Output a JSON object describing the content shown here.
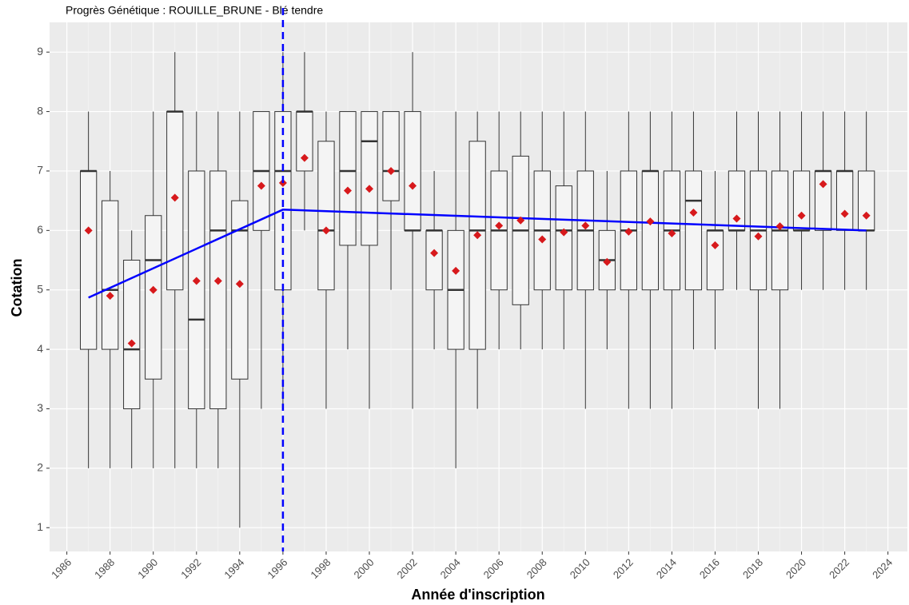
{
  "chart_data": {
    "type": "boxplot",
    "title": "Progrès Génétique : ROUILLE_BRUNE - Blé tendre",
    "x_label": "Année d'inscription",
    "y_label": "Cotation",
    "xlim": [
      1985.2,
      2024.9
    ],
    "ylim": [
      0.6,
      9.5
    ],
    "xticks": [
      1986,
      1988,
      1990,
      1992,
      1994,
      1996,
      1998,
      2000,
      2002,
      2004,
      2006,
      2008,
      2010,
      2012,
      2014,
      2016,
      2018,
      2020,
      2022,
      2024
    ],
    "yticks": [
      1,
      2,
      3,
      4,
      5,
      6,
      7,
      8,
      9
    ],
    "grid": true,
    "x": [
      1987,
      1988,
      1989,
      1990,
      1991,
      1992,
      1993,
      1994,
      1995,
      1996,
      1997,
      1998,
      1999,
      2000,
      2001,
      2002,
      2003,
      2004,
      2005,
      2006,
      2007,
      2008,
      2009,
      2010,
      2011,
      2012,
      2013,
      2014,
      2015,
      2016,
      2017,
      2018,
      2019,
      2020,
      2021,
      2022,
      2023
    ],
    "whisker_low": [
      2,
      2,
      2,
      2,
      2,
      2,
      2,
      1,
      3,
      3,
      6,
      3,
      4,
      3,
      5,
      3,
      4,
      2,
      3,
      4,
      4,
      4,
      4,
      3,
      4,
      3,
      3,
      3,
      4,
      4,
      5,
      3,
      3,
      5,
      5,
      5,
      5
    ],
    "q1": [
      4,
      4,
      3,
      3.5,
      5,
      3,
      3,
      3.5,
      6,
      5,
      7,
      5,
      5.75,
      5.75,
      6.5,
      6,
      5,
      4,
      4,
      5,
      4.75,
      5,
      5,
      5,
      5,
      5,
      5,
      5,
      5,
      5,
      6,
      5,
      5,
      6,
      6,
      6,
      6
    ],
    "median": [
      7,
      5,
      4,
      5.5,
      8,
      4.5,
      6,
      6,
      7,
      7,
      8,
      6,
      7,
      7.5,
      7,
      6,
      6,
      5,
      6,
      6,
      6,
      6,
      6,
      6,
      5.5,
      6,
      7,
      6,
      6.5,
      6,
      6,
      6,
      6,
      6,
      7,
      7,
      6
    ],
    "q3": [
      7,
      6.5,
      5.5,
      6.25,
      8,
      7,
      7,
      6.5,
      8,
      8,
      8,
      7.5,
      8,
      8,
      8,
      8,
      6,
      6,
      7.5,
      7,
      7.25,
      7,
      6.75,
      7,
      6,
      7,
      7,
      7,
      7,
      6,
      7,
      7,
      7,
      7,
      7,
      7,
      7
    ],
    "whisker_high": [
      8,
      7,
      6,
      8,
      9,
      8,
      8,
      8,
      8,
      9,
      9,
      8,
      8,
      8,
      8,
      9,
      7,
      8,
      8,
      8,
      8,
      8,
      8,
      8,
      7,
      8,
      8,
      8,
      8,
      7,
      8,
      8,
      8,
      8,
      8,
      8,
      8
    ],
    "mean": [
      6.0,
      4.9,
      4.1,
      5.0,
      6.55,
      5.15,
      5.15,
      5.1,
      6.75,
      6.8,
      7.22,
      6.0,
      6.67,
      6.7,
      7.0,
      6.75,
      5.62,
      5.32,
      5.92,
      6.08,
      6.17,
      5.85,
      5.97,
      6.08,
      5.47,
      5.98,
      6.15,
      5.95,
      6.3,
      5.75,
      6.2,
      5.9,
      6.07,
      6.25,
      6.78,
      6.28,
      6.25
    ],
    "mean_color": "#d7191c",
    "box_fill": "#f4f4f4",
    "box_stroke": "#333333",
    "trend": {
      "x": [
        1987,
        1996,
        2023
      ],
      "values": [
        4.87,
        6.35,
        6.0
      ],
      "color": "#0000ff"
    },
    "breakpoint": 1996,
    "breakpoint_color": "#0000ff"
  }
}
